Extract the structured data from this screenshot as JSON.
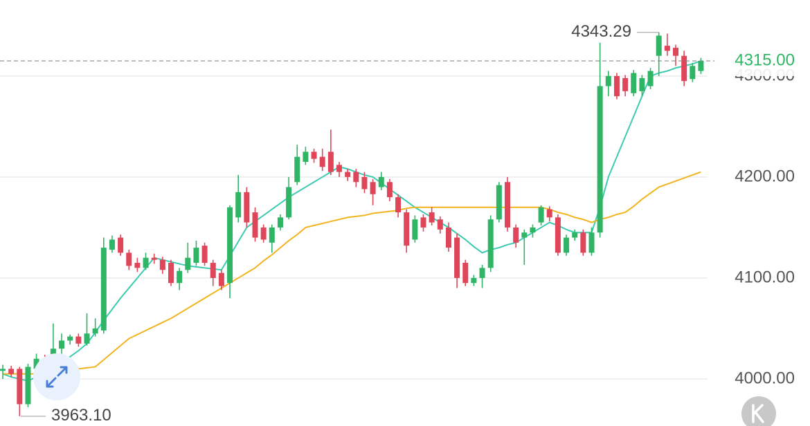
{
  "chart_data": {
    "type": "candlestick",
    "up_color": "#2fb565",
    "down_color": "#e0465a",
    "ylim": [
      3953.4,
      4375.3
    ],
    "yticks": [
      {
        "value": 4000,
        "label": "4000.00"
      },
      {
        "value": 4100,
        "label": "4100.00"
      },
      {
        "value": 4200,
        "label": "4200.00"
      },
      {
        "value": 4300,
        "label": "4300.00"
      }
    ],
    "grid": true,
    "open": [
      4008,
      4010,
      4010,
      3975,
      4010,
      4020,
      4020,
      4030,
      4038,
      4042,
      4035,
      4045,
      4048,
      4128,
      4140,
      4125,
      4115,
      4110,
      4120,
      4118,
      4115,
      4095,
      4108,
      4115,
      4132,
      4115,
      4105,
      4095,
      4160,
      4185,
      4165,
      4150,
      4135,
      4150,
      4160,
      4195,
      4215,
      4225,
      4220,
      4225,
      4212,
      4205,
      4205,
      4200,
      4195,
      4190,
      4195,
      4180,
      4165,
      4138,
      4160,
      4165,
      4158,
      4150,
      4140,
      4115,
      4095,
      4100,
      4110,
      4158,
      4195,
      4150,
      4140,
      4145,
      4155,
      4168,
      4160,
      4125,
      4140,
      4145,
      4125,
      4145,
      4290,
      4300,
      4298,
      4283,
      4285,
      4290,
      4320,
      4330,
      4328,
      4320,
      4297,
      4305
    ],
    "high": [
      4014,
      4013,
      4012,
      4015,
      4025,
      4024,
      4055,
      4045,
      4044,
      4045,
      4065,
      4060,
      4140,
      4142,
      4143,
      4128,
      4120,
      4125,
      4124,
      4121,
      4118,
      4110,
      4135,
      4137,
      4135,
      4118,
      4108,
      4172,
      4202,
      4190,
      4170,
      4153,
      4153,
      4163,
      4200,
      4232,
      4230,
      4228,
      4228,
      4247,
      4215,
      4208,
      4208,
      4205,
      4198,
      4205,
      4198,
      4183,
      4168,
      4162,
      4163,
      4170,
      4161,
      4155,
      4144,
      4118,
      4103,
      4113,
      4162,
      4195,
      4200,
      4153,
      4148,
      4153,
      4172,
      4171,
      4163,
      4143,
      4148,
      4148,
      4150,
      4333,
      4305,
      4303,
      4301,
      4306,
      4301,
      4308,
      4343.29,
      4342,
      4331,
      4325,
      4313,
      4318
    ],
    "low": [
      4000,
      4002,
      3963.1,
      3972,
      4005,
      4015,
      4016,
      4025,
      4034,
      4032,
      4033,
      4042,
      4045,
      4125,
      4122,
      4108,
      4106,
      4108,
      4114,
      4104,
      4092,
      4088,
      4105,
      4112,
      4112,
      4092,
      4088,
      4080,
      4155,
      4150,
      4136,
      4135,
      4125,
      4147,
      4158,
      4192,
      4212,
      4214,
      4206,
      4202,
      4200,
      4196,
      4190,
      4184,
      4172,
      4187,
      4176,
      4160,
      4125,
      4135,
      4146,
      4152,
      4144,
      4126,
      4090,
      4092,
      4092,
      4090,
      4106,
      4155,
      4146,
      4130,
      4113,
      4140,
      4152,
      4156,
      4122,
      4122,
      4137,
      4122,
      4122,
      4140,
      4280,
      4277,
      4280,
      4280,
      4280,
      4287,
      4300,
      4320,
      4310,
      4290,
      4294,
      4302
    ],
    "close": [
      4010,
      4005,
      3975,
      4012,
      4020,
      4018,
      4030,
      4038,
      4042,
      4035,
      4045,
      4050,
      4130,
      4138,
      4125,
      4112,
      4110,
      4120,
      4118,
      4108,
      4095,
      4107,
      4120,
      4130,
      4115,
      4100,
      4092,
      4170,
      4185,
      4155,
      4140,
      4138,
      4150,
      4160,
      4190,
      4220,
      4225,
      4218,
      4210,
      4205,
      4205,
      4200,
      4195,
      4188,
      4183,
      4200,
      4180,
      4165,
      4132,
      4158,
      4150,
      4155,
      4148,
      4130,
      4100,
      4095,
      4100,
      4110,
      4158,
      4192,
      4150,
      4135,
      4145,
      4150,
      4170,
      4160,
      4125,
      4140,
      4145,
      4125,
      4145,
      4290,
      4300,
      4280,
      4285,
      4303,
      4298,
      4305,
      4340,
      4325,
      4320,
      4295,
      4310,
      4315
    ],
    "lines": [
      {
        "color": "#3ccab0",
        "values": [
          4005,
          4002,
          4000,
          3998,
          4002,
          4006,
          4010,
          4016,
          4022,
          4028,
          4035,
          4046,
          4058,
          4069,
          4080,
          4090,
          4100,
          4110,
          4120,
          4118,
          4116,
          4114,
          4112,
          4111,
          4110,
          4109,
          4108,
          4122,
          4136,
          4150,
          4156,
          4162,
          4168,
          4174,
          4180,
          4185,
          4190,
          4195,
          4200,
          4205,
          4210,
          4208,
          4205,
          4202,
          4200,
          4194,
          4188,
          4182,
          4176,
          4170,
          4165,
          4160,
          4155,
          4150,
          4144,
          4138,
          4131,
          4125,
          4128,
          4130,
          4133,
          4135,
          4140,
          4145,
          4150,
          4155,
          4152,
          4148,
          4145,
          4145,
          4145,
          4170,
          4200,
          4220,
          4240,
          4260,
          4280,
          4300,
          4303,
          4305,
          4308,
          4310,
          4312,
          4315
        ]
      },
      {
        "color": "#f2b41f",
        "values": [
          4005,
          4005,
          4005,
          4005,
          4005,
          4005,
          4006,
          4007,
          4008,
          4010,
          4011,
          4012,
          4019,
          4026,
          4033,
          4040,
          4044,
          4048,
          4052,
          4056,
          4060,
          4065,
          4070,
          4075,
          4080,
          4085,
          4090,
          4095,
          4100,
          4105,
          4110,
          4117,
          4123,
          4130,
          4137,
          4143,
          4150,
          4152,
          4154,
          4156,
          4158,
          4160,
          4161,
          4162,
          4164,
          4165,
          4166,
          4167,
          4169,
          4170,
          4170,
          4170,
          4170,
          4170,
          4170,
          4170,
          4170,
          4170,
          4170,
          4170,
          4170,
          4170,
          4170,
          4170,
          4170,
          4168,
          4165,
          4163,
          4160,
          4158,
          4155,
          4158,
          4160,
          4163,
          4165,
          4171,
          4178,
          4184,
          4190,
          4193,
          4196,
          4199,
          4202,
          4205
        ]
      }
    ],
    "max_label": 4343.29,
    "min_label": {
      "value": 3963.1,
      "label": "3963.10"
    },
    "last_price": {
      "value": 4315,
      "label": "4315.00",
      "color": "#2fb565"
    }
  }
}
